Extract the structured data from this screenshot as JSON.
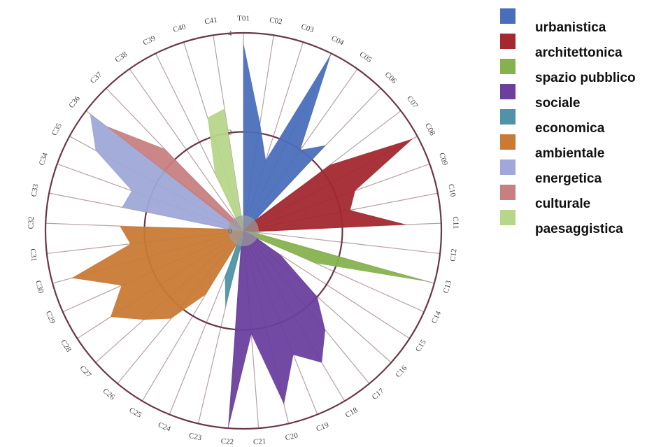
{
  "chart_data": {
    "type": "radar",
    "axes": [
      "T01",
      "C02",
      "C03",
      "C04",
      "C05",
      "C06",
      "C07",
      "C08",
      "C09",
      "C10",
      "C11",
      "C12",
      "C13",
      "C14",
      "C15",
      "C16",
      "C17",
      "C18",
      "C19",
      "C20",
      "C21",
      "C22",
      "C23",
      "C24",
      "C25",
      "C26",
      "C27",
      "C28",
      "C29",
      "C30",
      "C31",
      "C32",
      "C33",
      "C34",
      "C35",
      "C36",
      "C37",
      "C38",
      "C39",
      "C40",
      "C41"
    ],
    "ticks": [
      4,
      2,
      0
    ],
    "rmax": 4,
    "series": [
      {
        "name": "urbanistica",
        "color": "#4a6fba",
        "values": [
          3.8,
          2.2,
          1.5,
          4.0,
          2.0,
          2.4,
          0,
          0,
          0,
          0,
          0,
          0,
          0,
          0,
          0,
          0,
          0,
          0,
          0,
          0,
          0,
          0,
          0,
          0,
          0,
          0,
          0,
          0,
          0,
          0,
          0,
          0,
          0,
          0,
          0,
          0,
          0,
          0,
          0,
          0,
          0
        ]
      },
      {
        "name": "architettonica",
        "color": "#a3282f",
        "values": [
          0,
          0,
          0,
          0,
          0,
          0,
          2.2,
          3.9,
          2.4,
          2.2,
          3.3,
          0,
          0,
          0,
          0,
          0,
          0,
          0,
          0,
          0,
          0,
          0,
          0,
          0,
          0,
          0,
          0,
          0,
          0,
          0,
          0,
          0,
          0,
          0,
          0,
          0,
          0,
          0,
          0,
          0,
          0
        ]
      },
      {
        "name": "spazio pubblico",
        "color": "#86b24e",
        "values": [
          0,
          0,
          0,
          0,
          0,
          0,
          0,
          0,
          0,
          0,
          0,
          0,
          3.9,
          1.6,
          0,
          0,
          0,
          0,
          0,
          0,
          0,
          0,
          0,
          0,
          0,
          0,
          0,
          0,
          0,
          0,
          0,
          0,
          0,
          0,
          0,
          0,
          0,
          0,
          0,
          0,
          0
        ]
      },
      {
        "name": "sociale",
        "color": "#6a3f9e",
        "values": [
          0,
          0,
          0,
          0,
          0,
          0,
          0,
          0,
          0,
          0,
          0,
          0,
          0,
          0,
          0.9,
          2.0,
          2.6,
          3.1,
          2.7,
          3.6,
          2.1,
          4.0,
          0,
          0,
          0,
          0,
          0,
          0,
          0,
          0,
          0,
          0,
          0,
          0,
          0,
          0,
          0,
          0,
          0,
          0,
          0
        ]
      },
      {
        "name": "economica",
        "color": "#4f93a5",
        "values": [
          0,
          0,
          0,
          0,
          0,
          0,
          0,
          0,
          0,
          0,
          0,
          0,
          0,
          0,
          0,
          0,
          0,
          0,
          0,
          0,
          0,
          0,
          1.6,
          1.0,
          0,
          0,
          0,
          0,
          0,
          0,
          0,
          0,
          0,
          0,
          0,
          0,
          0,
          0,
          0,
          0,
          0
        ]
      },
      {
        "name": "ambientale",
        "color": "#c97a35",
        "values": [
          0,
          0,
          0,
          0,
          0,
          0,
          0,
          0,
          0,
          0,
          0,
          0,
          0,
          0,
          0,
          0,
          0,
          0,
          0,
          0,
          0,
          0,
          0,
          0,
          1.5,
          2.3,
          2.7,
          3.2,
          2.7,
          3.6,
          2.3,
          2.5,
          0,
          0,
          0,
          0,
          0,
          0,
          0,
          0,
          0
        ]
      },
      {
        "name": "energetica",
        "color": "#9fa8d8",
        "values": [
          0,
          0,
          0,
          0,
          0,
          0,
          0,
          0,
          0,
          0,
          0,
          0,
          0,
          0,
          0,
          0,
          0,
          0,
          0,
          0,
          0,
          0,
          0,
          0,
          0,
          0,
          0,
          0,
          0,
          0,
          0,
          0,
          2.5,
          2.4,
          3.4,
          3.9,
          0,
          0,
          0,
          0,
          0
        ]
      },
      {
        "name": "culturale",
        "color": "#c87f82",
        "values": [
          0,
          0,
          0,
          0,
          0,
          0,
          0,
          0,
          0,
          0,
          0,
          0,
          0,
          0,
          0,
          0,
          0,
          0,
          0,
          0,
          0,
          0,
          0,
          0,
          0,
          0,
          0,
          0,
          0,
          0,
          0,
          0,
          0,
          0,
          0,
          3.5,
          2.3,
          0,
          0,
          0,
          0
        ]
      },
      {
        "name": "paesaggistica",
        "color": "#b6d68a",
        "values": [
          0,
          0,
          0,
          0,
          0,
          0,
          0,
          0,
          0,
          0,
          0,
          0,
          0,
          0,
          0,
          0,
          0,
          0,
          0,
          0,
          0,
          0,
          0,
          0,
          0,
          0,
          0,
          0,
          0,
          0,
          0,
          0,
          0,
          0,
          0,
          0,
          0,
          0,
          1.3,
          2.4,
          2.5
        ]
      }
    ]
  }
}
